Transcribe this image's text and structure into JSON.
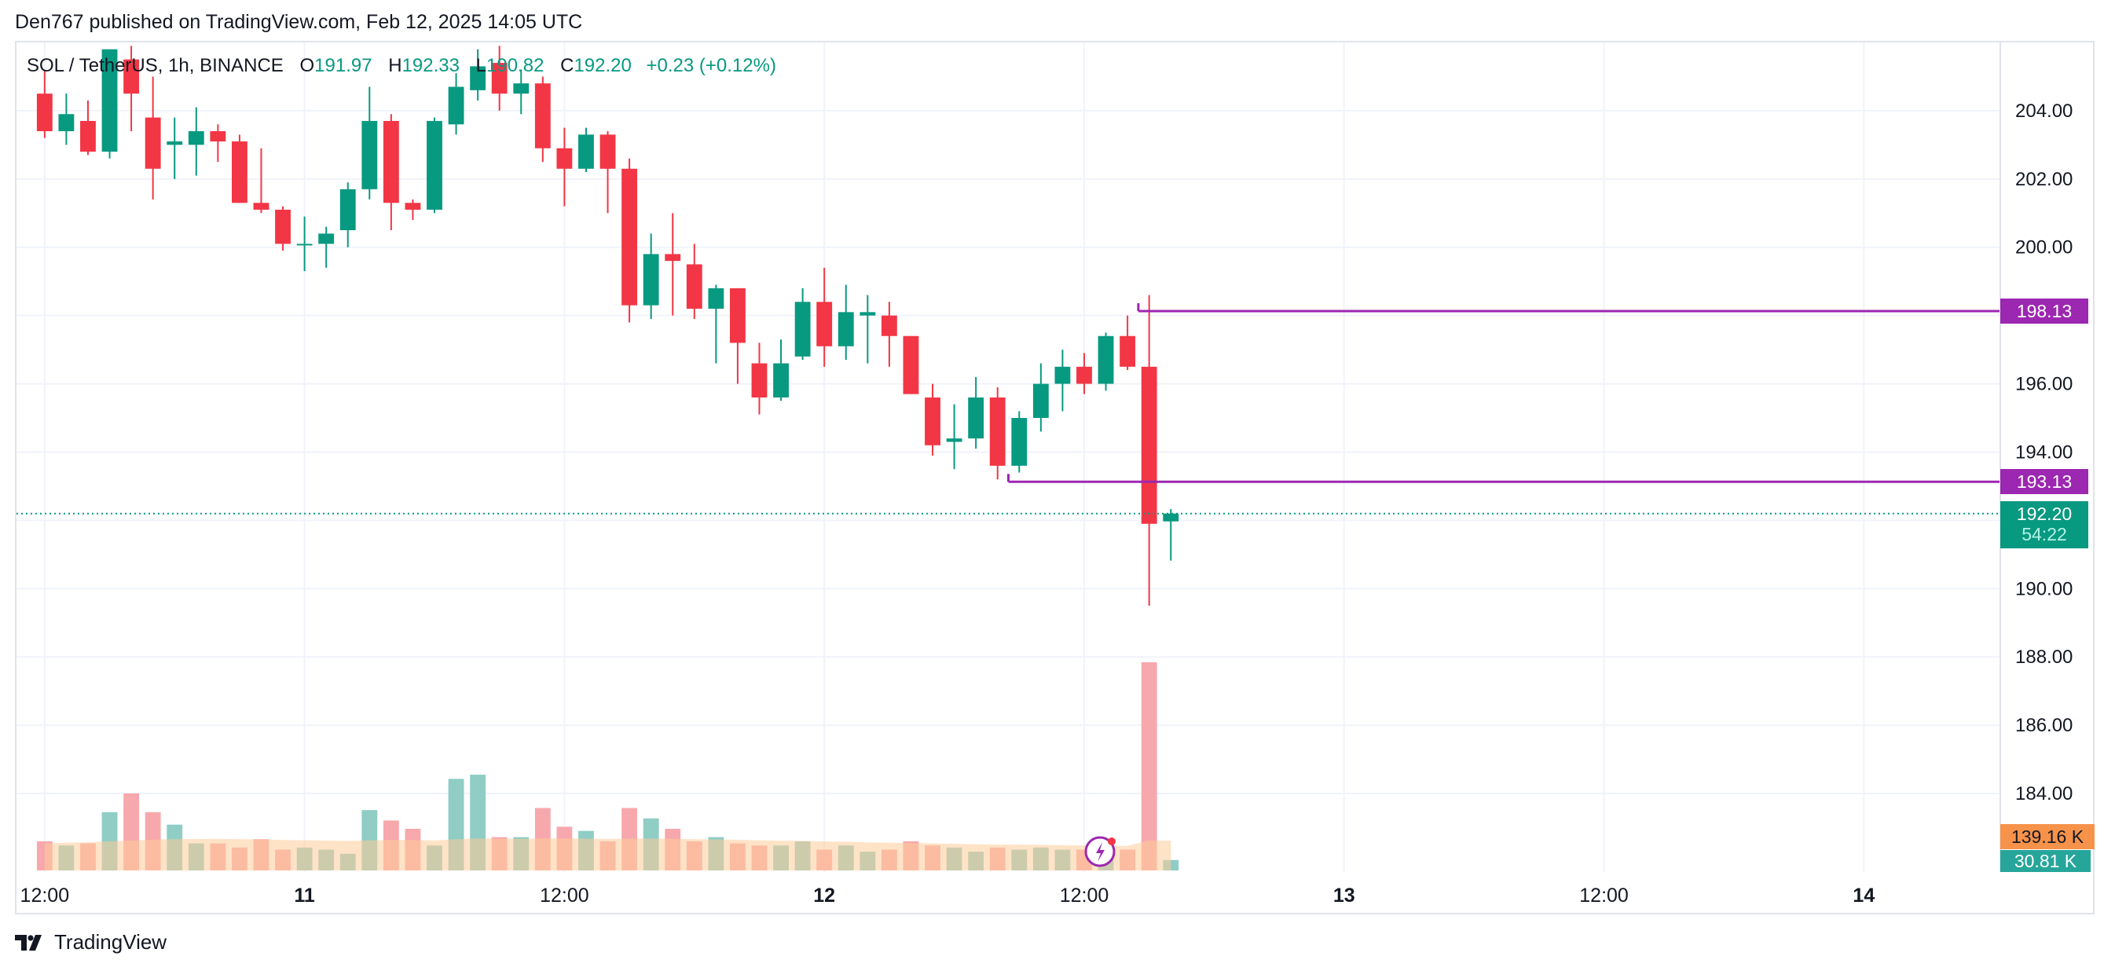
{
  "header": {
    "published_text": "Den767 published on TradingView.com, Feb 12, 2025 14:05 UTC"
  },
  "legend": {
    "symbol": "SOL / TetherUS, 1h, BINANCE",
    "o_label": "O",
    "o_value": "191.97",
    "h_label": "H",
    "h_value": "192.33",
    "l_label": "L",
    "l_value": "190.82",
    "c_label": "C",
    "c_value": "192.20",
    "change": "+0.23 (+0.12%)"
  },
  "colors": {
    "up": "#089981",
    "down": "#f23645",
    "vol_up": "#8fcdc5",
    "vol_down": "#f7a8ad",
    "vol_ma_fill": "#ffcc99",
    "level_line": "#9c27b0",
    "grid": "#f0f3fa",
    "axis_text": "#131722"
  },
  "footer": {
    "brand": "TradingView",
    "logo_icon": "tradingview-logo-icon"
  },
  "chart_data": {
    "type": "candlestick",
    "title": "SOL / TetherUS, 1h, BINANCE",
    "ylim": [
      181.7,
      206
    ],
    "y_ticks": [
      184,
      186,
      188,
      190,
      192,
      194,
      196,
      198,
      200,
      202,
      204
    ],
    "y_tick_labels": [
      "184.00",
      "186.00",
      "188.00",
      "190.00",
      "192.00",
      "194.00",
      "196.00",
      "198.00",
      "200.00",
      "202.00",
      "204.00"
    ],
    "x_ticks": [
      {
        "label": "12:00",
        "bold": false,
        "hour": 0
      },
      {
        "label": "11",
        "bold": true,
        "hour": 12
      },
      {
        "label": "12:00",
        "bold": false,
        "hour": 24
      },
      {
        "label": "12",
        "bold": true,
        "hour": 36
      },
      {
        "label": "12:00",
        "bold": false,
        "hour": 48
      },
      {
        "label": "13",
        "bold": true,
        "hour": 60
      },
      {
        "label": "12:00",
        "bold": false,
        "hour": 72
      },
      {
        "label": "14",
        "bold": true,
        "hour": 84
      }
    ],
    "x_range_hours": [
      -1.3,
      90.3
    ],
    "candles": [
      {
        "o": 204.5,
        "h": 205.2,
        "l": 203.2,
        "c": 203.4
      },
      {
        "o": 203.4,
        "h": 204.5,
        "l": 203.0,
        "c": 203.9
      },
      {
        "o": 203.7,
        "h": 204.3,
        "l": 202.7,
        "c": 202.8
      },
      {
        "o": 202.8,
        "h": 205.6,
        "l": 202.6,
        "c": 205.8
      },
      {
        "o": 205.5,
        "h": 205.9,
        "l": 203.4,
        "c": 204.5
      },
      {
        "o": 203.8,
        "h": 205.0,
        "l": 201.4,
        "c": 202.3
      },
      {
        "o": 203.0,
        "h": 203.8,
        "l": 202.0,
        "c": 203.1
      },
      {
        "o": 203.0,
        "h": 204.1,
        "l": 202.1,
        "c": 203.4
      },
      {
        "o": 203.4,
        "h": 203.6,
        "l": 202.5,
        "c": 203.1
      },
      {
        "o": 203.1,
        "h": 203.3,
        "l": 201.3,
        "c": 201.3
      },
      {
        "o": 201.3,
        "h": 202.9,
        "l": 201.0,
        "c": 201.1
      },
      {
        "o": 201.1,
        "h": 201.2,
        "l": 199.9,
        "c": 200.1
      },
      {
        "o": 200.1,
        "h": 200.9,
        "l": 199.3,
        "c": 200.1
      },
      {
        "o": 200.1,
        "h": 200.6,
        "l": 199.4,
        "c": 200.4
      },
      {
        "o": 200.5,
        "h": 201.9,
        "l": 200.0,
        "c": 201.7
      },
      {
        "o": 201.7,
        "h": 204.7,
        "l": 201.4,
        "c": 203.7
      },
      {
        "o": 203.7,
        "h": 203.9,
        "l": 200.5,
        "c": 201.3
      },
      {
        "o": 201.3,
        "h": 201.4,
        "l": 200.8,
        "c": 201.1
      },
      {
        "o": 201.1,
        "h": 203.8,
        "l": 201.0,
        "c": 203.7
      },
      {
        "o": 203.6,
        "h": 205.1,
        "l": 203.3,
        "c": 204.7
      },
      {
        "o": 204.6,
        "h": 205.8,
        "l": 204.3,
        "c": 205.3
      },
      {
        "o": 205.4,
        "h": 205.9,
        "l": 204.0,
        "c": 204.5
      },
      {
        "o": 204.5,
        "h": 205.2,
        "l": 203.9,
        "c": 204.8
      },
      {
        "o": 204.8,
        "h": 205.0,
        "l": 202.5,
        "c": 202.9
      },
      {
        "o": 202.9,
        "h": 203.5,
        "l": 201.2,
        "c": 202.3
      },
      {
        "o": 202.3,
        "h": 203.5,
        "l": 202.2,
        "c": 203.3
      },
      {
        "o": 203.3,
        "h": 203.4,
        "l": 201.0,
        "c": 202.3
      },
      {
        "o": 202.3,
        "h": 202.6,
        "l": 197.8,
        "c": 198.3
      },
      {
        "o": 198.3,
        "h": 200.4,
        "l": 197.9,
        "c": 199.8
      },
      {
        "o": 199.8,
        "h": 201.0,
        "l": 198.0,
        "c": 199.6
      },
      {
        "o": 199.5,
        "h": 200.1,
        "l": 197.9,
        "c": 198.2
      },
      {
        "o": 198.2,
        "h": 198.9,
        "l": 196.6,
        "c": 198.8
      },
      {
        "o": 198.8,
        "h": 198.8,
        "l": 196.0,
        "c": 197.2
      },
      {
        "o": 196.6,
        "h": 197.2,
        "l": 195.1,
        "c": 195.6
      },
      {
        "o": 195.6,
        "h": 197.3,
        "l": 195.5,
        "c": 196.6
      },
      {
        "o": 196.8,
        "h": 198.8,
        "l": 196.7,
        "c": 198.4
      },
      {
        "o": 198.4,
        "h": 199.4,
        "l": 196.5,
        "c": 197.1
      },
      {
        "o": 197.1,
        "h": 198.9,
        "l": 196.7,
        "c": 198.1
      },
      {
        "o": 198.0,
        "h": 198.6,
        "l": 196.6,
        "c": 198.1
      },
      {
        "o": 198.0,
        "h": 198.4,
        "l": 196.5,
        "c": 197.4
      },
      {
        "o": 197.4,
        "h": 197.4,
        "l": 195.7,
        "c": 195.7
      },
      {
        "o": 195.6,
        "h": 196.0,
        "l": 193.9,
        "c": 194.2
      },
      {
        "o": 194.3,
        "h": 195.4,
        "l": 193.5,
        "c": 194.4
      },
      {
        "o": 194.4,
        "h": 196.2,
        "l": 194.1,
        "c": 195.6
      },
      {
        "o": 195.6,
        "h": 195.9,
        "l": 193.2,
        "c": 193.6
      },
      {
        "o": 193.6,
        "h": 195.2,
        "l": 193.4,
        "c": 195.0
      },
      {
        "o": 195.0,
        "h": 196.6,
        "l": 194.6,
        "c": 196.0
      },
      {
        "o": 196.0,
        "h": 197.0,
        "l": 195.2,
        "c": 196.5
      },
      {
        "o": 196.5,
        "h": 196.9,
        "l": 195.7,
        "c": 196.0
      },
      {
        "o": 196.0,
        "h": 197.5,
        "l": 195.8,
        "c": 197.4
      },
      {
        "o": 197.4,
        "h": 198.0,
        "l": 196.4,
        "c": 196.5
      },
      {
        "o": 196.5,
        "h": 198.6,
        "l": 189.5,
        "c": 191.9
      },
      {
        "o": 191.97,
        "h": 192.33,
        "l": 190.82,
        "c": 192.2
      }
    ],
    "volume": {
      "max": 5100000,
      "values": [
        14,
        12,
        13,
        28,
        37,
        28,
        22,
        13,
        13,
        11,
        15,
        10,
        11,
        10,
        8,
        29,
        24,
        20,
        12,
        44,
        46,
        16,
        16,
        30,
        21,
        19,
        14,
        30,
        25,
        20,
        14,
        16,
        13,
        12,
        12,
        14,
        10,
        12,
        9,
        10,
        14,
        12,
        11,
        9,
        11,
        10,
        11,
        10,
        10,
        9,
        10,
        100,
        5
      ],
      "ma_values": [
        13,
        13.3,
        13.6,
        14,
        14.4,
        14.8,
        15,
        15.1,
        15.2,
        15,
        14.9,
        14.6,
        14.5,
        14.4,
        14.2,
        14.5,
        14.6,
        14.6,
        14.4,
        15,
        15.4,
        15.3,
        15.2,
        15.4,
        15.4,
        15.3,
        15.1,
        15.3,
        15.3,
        15.2,
        15,
        14.9,
        14.7,
        14.5,
        14.3,
        14.2,
        13.9,
        13.8,
        13.5,
        13.3,
        13.2,
        13,
        12.8,
        12.6,
        12.5,
        12.4,
        12.3,
        12.1,
        12,
        11.9,
        11.8,
        14.5,
        14.3
      ]
    },
    "levels": [
      {
        "value": 198.13,
        "label": "198.13",
        "start_index": 50.5
      },
      {
        "value": 193.13,
        "label": "193.13",
        "start_index": 44.5
      }
    ],
    "last_price": {
      "label": "192.20",
      "countdown": "54:22",
      "value": 192.2
    },
    "volume_labels": {
      "ma": "139.16 K",
      "last": "30.81 K"
    }
  }
}
